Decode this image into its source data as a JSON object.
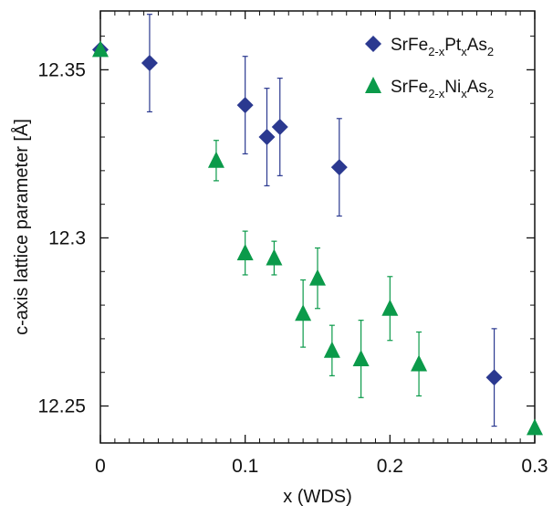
{
  "chart_data": {
    "type": "scatter",
    "xlabel": "x (WDS)",
    "ylabel": "c-axis lattice parameter [Å]",
    "xlim": [
      0,
      0.3
    ],
    "ylim": [
      12.239,
      12.3675
    ],
    "x_ticks": [
      "0",
      "0.1",
      "0.2",
      "0.3"
    ],
    "y_ticks": [
      "12.25",
      "12.3",
      "12.35"
    ],
    "x_tick_values": [
      0,
      0.1,
      0.2,
      0.3
    ],
    "y_tick_values": [
      12.25,
      12.3,
      12.35
    ],
    "legend_position": "top-right",
    "series": [
      {
        "name": "SrFe2-xPtxAs2",
        "legend": {
          "base": "SrFe",
          "sub1": "2-x",
          "mid": "Pt",
          "sub2": "x",
          "end": "As",
          "sub3": "2"
        },
        "marker": "diamond",
        "color": "#2b3990",
        "points": [
          {
            "x": 0.0,
            "y": 12.356,
            "err": 0.0
          },
          {
            "x": 0.034,
            "y": 12.352,
            "err": 0.0145
          },
          {
            "x": 0.1,
            "y": 12.3395,
            "err": 0.0145
          },
          {
            "x": 0.115,
            "y": 12.33,
            "err": 0.0145
          },
          {
            "x": 0.124,
            "y": 12.333,
            "err": 0.0145
          },
          {
            "x": 0.165,
            "y": 12.321,
            "err": 0.0145
          },
          {
            "x": 0.272,
            "y": 12.2585,
            "err": 0.0145
          }
        ]
      },
      {
        "name": "SrFe2-xNixAs2",
        "legend": {
          "base": "SrFe",
          "sub1": "2-x",
          "mid": "Ni",
          "sub2": "x",
          "end": "As",
          "sub3": "2"
        },
        "marker": "triangle",
        "color": "#0b9a4a",
        "points": [
          {
            "x": 0.0,
            "y": 12.356,
            "err": 0.0
          },
          {
            "x": 0.08,
            "y": 12.323,
            "err": 0.006
          },
          {
            "x": 0.1,
            "y": 12.2955,
            "err": 0.0065
          },
          {
            "x": 0.12,
            "y": 12.294,
            "err": 0.005
          },
          {
            "x": 0.14,
            "y": 12.2775,
            "err": 0.01
          },
          {
            "x": 0.15,
            "y": 12.288,
            "err": 0.009
          },
          {
            "x": 0.16,
            "y": 12.2665,
            "err": 0.0075
          },
          {
            "x": 0.18,
            "y": 12.264,
            "err": 0.0115
          },
          {
            "x": 0.2,
            "y": 12.279,
            "err": 0.0095
          },
          {
            "x": 0.22,
            "y": 12.2625,
            "err": 0.0095
          },
          {
            "x": 0.3,
            "y": 12.2435,
            "err": 0.0
          }
        ]
      }
    ]
  }
}
